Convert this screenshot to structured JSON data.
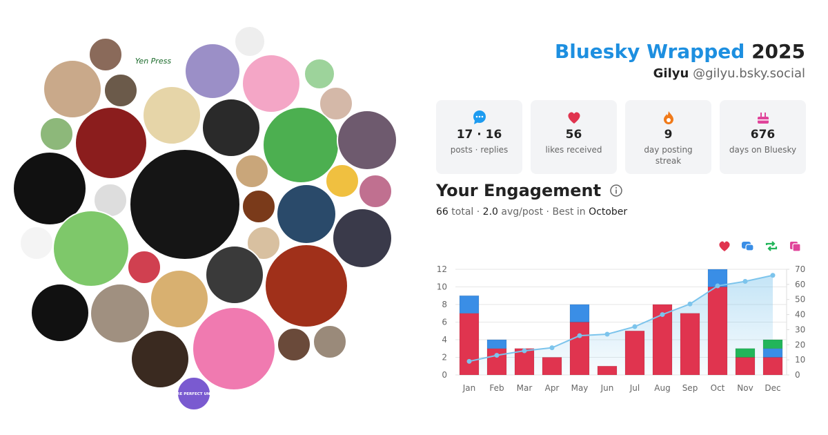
{
  "header": {
    "title": "Bluesky Wrapped",
    "year": "2025",
    "name": "Gilyu",
    "handle": "@gilyu.bsky.social"
  },
  "avatars": {
    "publisher": "Yen Press",
    "badge": "MORE PERFECT UNION"
  },
  "stats": [
    {
      "value": "17 · 16",
      "label": "posts · replies"
    },
    {
      "value": 56,
      "label": "likes received"
    },
    {
      "value": 9,
      "label": "day posting streak"
    },
    {
      "value": 676,
      "label": "days on Bluesky"
    }
  ],
  "engagement": {
    "title": "Your Engagement",
    "total": 66,
    "total_label": "total",
    "separator": "·",
    "avg": "2.0",
    "avg_label": "avg/post",
    "best_label": "Best in",
    "best": "October"
  },
  "chart_data": {
    "type": "bar",
    "stacked": true,
    "grid": true,
    "categories": [
      "Jan",
      "Feb",
      "Mar",
      "Apr",
      "May",
      "Jun",
      "Jul",
      "Aug",
      "Sep",
      "Oct",
      "Nov",
      "Dec"
    ],
    "series": [
      {
        "color": "#e0344f",
        "values": [
          7,
          3,
          3,
          2,
          6,
          1,
          5,
          8,
          7,
          10,
          2,
          2
        ]
      },
      {
        "color": "#3a8ee6",
        "values": [
          2,
          1,
          0,
          0,
          2,
          0,
          0,
          0,
          0,
          2,
          0,
          1
        ]
      },
      {
        "color": "#22b55a",
        "values": [
          0,
          0,
          0,
          0,
          0,
          0,
          0,
          0,
          0,
          0,
          1,
          1
        ]
      },
      {
        "color": "#e0449a",
        "values": [
          0,
          0,
          0,
          0,
          0,
          0,
          0,
          0,
          0,
          0,
          0,
          0
        ]
      },
      {
        "type": "area",
        "axis": "y2",
        "color": "#7cc4ec",
        "values": [
          9,
          13,
          16,
          18,
          26,
          27,
          32,
          40,
          47,
          59,
          62,
          66
        ]
      }
    ],
    "ylim": [
      0,
      12
    ],
    "yticks": [
      0,
      2,
      4,
      6,
      8,
      10,
      12
    ],
    "y2lim": [
      0,
      70
    ],
    "y2ticks": [
      0,
      10,
      20,
      30,
      40,
      50,
      60,
      70
    ]
  }
}
